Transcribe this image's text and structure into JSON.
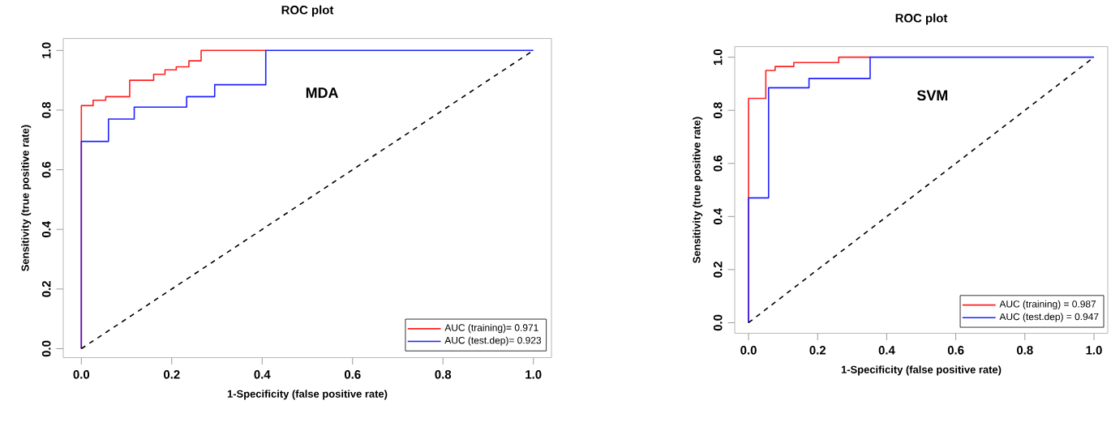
{
  "chart_data": [
    {
      "type": "step",
      "title": "ROC plot",
      "xlabel": "1-Specificity (false positive rate)",
      "ylabel": "Sensitivity (true positive rate)",
      "annotations": [
        "MDA"
      ],
      "xlim": [
        -0.04,
        1.04
      ],
      "ylim": [
        -0.03,
        1.04
      ],
      "xticks": [
        {
          "value": 0,
          "label": "0.0"
        },
        {
          "value": 0.2,
          "label": "0.2"
        },
        {
          "value": 0.4,
          "label": "0.4"
        },
        {
          "value": 0.6,
          "label": "0.6"
        },
        {
          "value": 0.8,
          "label": "0.8"
        },
        {
          "value": 1,
          "label": "1.0"
        }
      ],
      "yticks": [
        {
          "value": 0,
          "label": "0.0"
        },
        {
          "value": 0.2,
          "label": "0.2"
        },
        {
          "value": 0.4,
          "label": "0.4"
        },
        {
          "value": 0.6,
          "label": "0.6"
        },
        {
          "value": 0.8,
          "label": "0.8"
        },
        {
          "value": 1,
          "label": "1.0"
        }
      ],
      "grid": false,
      "legend": "bottom right",
      "series": [
        {
          "name": "AUC (training)= 0.971",
          "color": "#ff2020",
          "x": [
            0,
            0,
            0.026,
            0.054,
            0.107,
            0.16,
            0.185,
            0.21,
            0.238,
            0.265,
            0.408
          ],
          "values": [
            0,
            0.815,
            0.833,
            0.845,
            0.9,
            0.92,
            0.935,
            0.945,
            0.965,
            1.0,
            1.0
          ]
        },
        {
          "name": "AUC (test.dep)= 0.923",
          "color": "#2020ff",
          "x": [
            0,
            0,
            0.06,
            0.117,
            0.233,
            0.295,
            0.408,
            1.0
          ],
          "values": [
            0,
            0.695,
            0.77,
            0.81,
            0.845,
            0.885,
            1.0,
            1.0
          ]
        },
        {
          "type": "line",
          "color": "#000000",
          "line_style": "dashed",
          "x": [
            0,
            1
          ],
          "values": [
            0,
            1
          ]
        }
      ]
    },
    {
      "type": "step",
      "title": "ROC plot",
      "xlabel": "1-Specificity (false positive rate)",
      "ylabel": "Sensitivity (true positive rate)",
      "annotations": [
        "SVM"
      ],
      "xlim": [
        -0.04,
        1.04
      ],
      "ylim": [
        -0.04,
        1.04
      ],
      "xticks": [
        {
          "value": 0,
          "label": "0.0"
        },
        {
          "value": 0.2,
          "label": "0.2"
        },
        {
          "value": 0.4,
          "label": "0.4"
        },
        {
          "value": 0.6,
          "label": "0.6"
        },
        {
          "value": 0.8,
          "label": "0.8"
        },
        {
          "value": 1,
          "label": "1.0"
        }
      ],
      "yticks": [
        {
          "value": 0,
          "label": "0.0"
        },
        {
          "value": 0.2,
          "label": "0.2"
        },
        {
          "value": 0.4,
          "label": "0.4"
        },
        {
          "value": 0.6,
          "label": "0.6"
        },
        {
          "value": 0.8,
          "label": "0.8"
        },
        {
          "value": 1,
          "label": "1.0"
        }
      ],
      "grid": false,
      "legend": "bottom right",
      "series": [
        {
          "name": "AUC (training) = 0.987",
          "color": "#ff2020",
          "x": [
            0,
            0,
            0.05,
            0.077,
            0.131,
            0.261,
            0.352
          ],
          "values": [
            0,
            0.845,
            0.95,
            0.965,
            0.98,
            1.0,
            1.0
          ]
        },
        {
          "name": "AUC (test.dep) = 0.947",
          "color": "#2020ff",
          "x": [
            0,
            0,
            0.058,
            0.175,
            0.352,
            1.0
          ],
          "values": [
            0,
            0.47,
            0.885,
            0.92,
            1.0,
            1.0
          ]
        },
        {
          "type": "line",
          "color": "#000000",
          "line_style": "dashed",
          "x": [
            0,
            1
          ],
          "values": [
            0,
            1
          ]
        }
      ]
    }
  ]
}
